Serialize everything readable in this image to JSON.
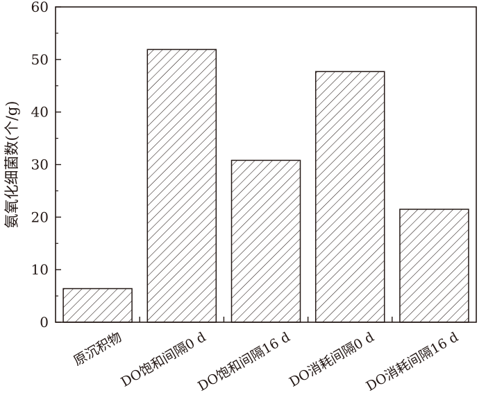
{
  "chart_data": {
    "type": "bar",
    "title": "",
    "xlabel": "",
    "ylabel": "氨氧化细菌数(个/g)",
    "categories": [
      "原沉积物",
      "DO饱和间隔0 d",
      "DO饱和间隔16 d",
      "DO消耗间隔0 d",
      "DO消耗间隔16 d"
    ],
    "values": [
      6.4,
      51.9,
      30.8,
      47.7,
      21.5
    ],
    "ylim": [
      0,
      60
    ],
    "yticks": [
      0,
      10,
      20,
      30,
      40,
      50,
      60
    ],
    "grid": false,
    "bar_fill": "diagonal-hatch",
    "colors": {
      "axis": "#231815",
      "bar_stroke": "#231815",
      "hatch": "#231815",
      "background": "#ffffff"
    }
  }
}
